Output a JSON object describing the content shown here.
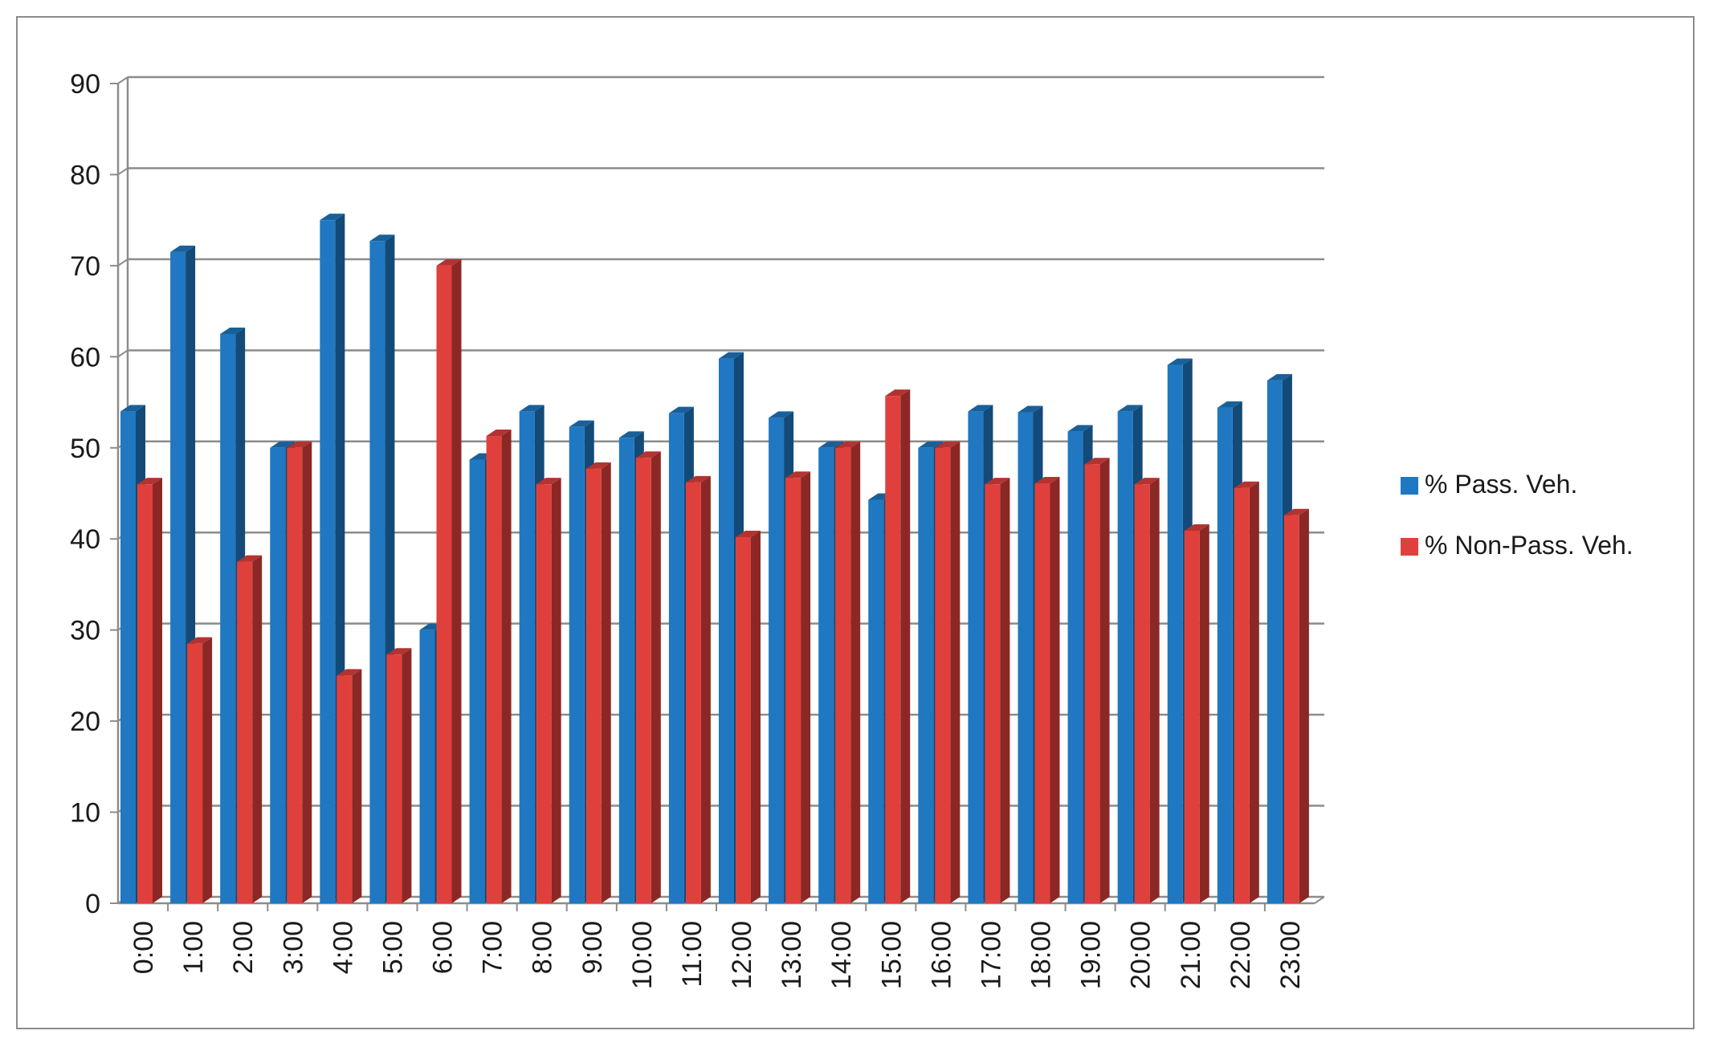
{
  "chart_data": {
    "type": "bar",
    "title": "",
    "xlabel": "",
    "ylabel": "",
    "ylim": [
      0,
      90
    ],
    "yticks": [
      0,
      10,
      20,
      30,
      40,
      50,
      60,
      70,
      80,
      90
    ],
    "grid": true,
    "legend_position": "right",
    "categories": [
      "0:00",
      "1:00",
      "2:00",
      "3:00",
      "4:00",
      "5:00",
      "6:00",
      "7:00",
      "8:00",
      "9:00",
      "10:00",
      "11:00",
      "12:00",
      "13:00",
      "14:00",
      "15:00",
      "16:00",
      "17:00",
      "18:00",
      "19:00",
      "20:00",
      "21:00",
      "22:00",
      "23:00"
    ],
    "series": [
      {
        "name": "% Pass. Veh.",
        "color": "#1F78C1",
        "values": [
          54,
          71.5,
          62.5,
          50,
          75,
          72.7,
          30,
          48.7,
          54,
          52.3,
          51.1,
          53.8,
          59.8,
          53.3,
          50,
          44.3,
          50,
          54,
          53.9,
          51.8,
          54,
          59.1,
          54.4,
          57.4
        ]
      },
      {
        "name": "% Non-Pass. Veh.",
        "color": "#E0403C",
        "values": [
          46,
          28.5,
          37.5,
          50,
          25,
          27.3,
          70,
          51.3,
          46,
          47.7,
          48.9,
          46.2,
          40.2,
          46.7,
          50,
          55.7,
          50,
          46,
          46.1,
          48.2,
          46,
          40.9,
          45.6,
          42.6
        ]
      }
    ]
  }
}
